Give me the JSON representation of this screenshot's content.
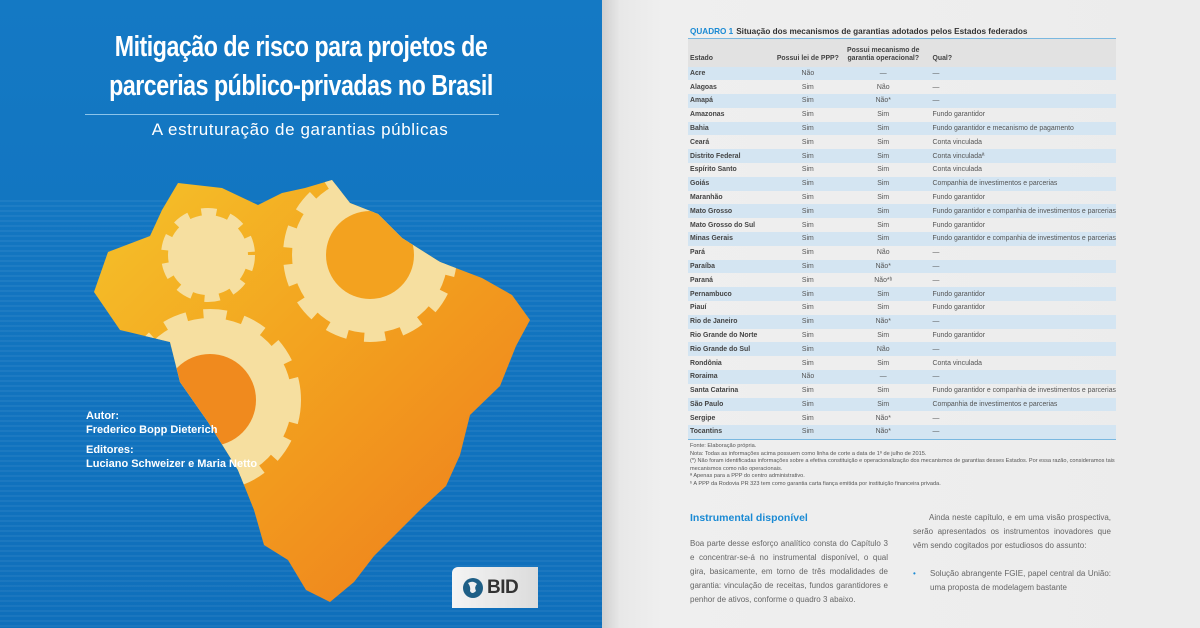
{
  "cover": {
    "title_line1": "Mitigação de risco para projetos de",
    "title_line2": "parcerias público-privadas no Brasil",
    "subtitle": "A estruturação de garantias públicas",
    "author_label": "Autor:",
    "author": "Frederico Bopp Dieterich",
    "editors_label": "Editores:",
    "editors": "Luciano Schweizer e Maria Netto",
    "logo_text": "BID",
    "colors": {
      "background": "#1479c4",
      "map_orange": "#f0851e",
      "map_yellow": "#f3b929",
      "gear": "#f6dfa0"
    }
  },
  "page": {
    "table_label": "QUADRO 1",
    "table_title": "Situação dos mecanismos de garantias adotados pelos Estados federados",
    "headers": [
      "Estado",
      "Possui lei de PPP?",
      "Possui mecanismo de garantia operacional?",
      "Qual?"
    ],
    "rows": [
      [
        "Acre",
        "Não",
        "—",
        "—"
      ],
      [
        "Alagoas",
        "Sim",
        "Não",
        "—"
      ],
      [
        "Amapá",
        "Sim",
        "Não*",
        "—"
      ],
      [
        "Amazonas",
        "Sim",
        "Sim",
        "Fundo garantidor"
      ],
      [
        "Bahia",
        "Sim",
        "Sim",
        "Fundo garantidor e mecanismo de pagamento"
      ],
      [
        "Ceará",
        "Sim",
        "Sim",
        "Conta vinculada"
      ],
      [
        "Distrito Federal",
        "Sim",
        "Sim",
        "Conta vinculadaª"
      ],
      [
        "Espírito Santo",
        "Sim",
        "Sim",
        "Conta vinculada"
      ],
      [
        "Goiás",
        "Sim",
        "Sim",
        "Companhia de investimentos e parcerias"
      ],
      [
        "Maranhão",
        "Sim",
        "Sim",
        "Fundo garantidor"
      ],
      [
        "Mato Grosso",
        "Sim",
        "Sim",
        "Fundo garantidor e companhia de investimentos e parcerias"
      ],
      [
        "Mato Grosso do Sul",
        "Sim",
        "Sim",
        "Fundo garantidor"
      ],
      [
        "Minas Gerais",
        "Sim",
        "Sim",
        "Fundo garantidor e companhia de investimentos e parcerias"
      ],
      [
        "Pará",
        "Sim",
        "Não",
        "—"
      ],
      [
        "Paraíba",
        "Sim",
        "Não*",
        "—"
      ],
      [
        "Paraná",
        "Sim",
        "Não*ᵇ",
        "—"
      ],
      [
        "Pernambuco",
        "Sim",
        "Sim",
        "Fundo garantidor"
      ],
      [
        "Piauí",
        "Sim",
        "Sim",
        "Fundo garantidor"
      ],
      [
        "Rio de Janeiro",
        "Sim",
        "Não*",
        "—"
      ],
      [
        "Rio Grande do Norte",
        "Sim",
        "Sim",
        "Fundo garantidor"
      ],
      [
        "Rio Grande do Sul",
        "Sim",
        "Não",
        "—"
      ],
      [
        "Rondônia",
        "Sim",
        "Sim",
        "Conta vinculada"
      ],
      [
        "Roraima",
        "Não",
        "—",
        "—"
      ],
      [
        "Santa Catarina",
        "Sim",
        "Sim",
        "Fundo garantidor e companhia de investimentos e parcerias"
      ],
      [
        "São Paulo",
        "Sim",
        "Sim",
        "Companhia de investimentos e parcerias"
      ],
      [
        "Sergipe",
        "Sim",
        "Não*",
        "—"
      ],
      [
        "Tocantins",
        "Sim",
        "Não*",
        "—"
      ]
    ],
    "notes": [
      "Fonte: Elaboração própria.",
      "Nota: Todas as informações acima possuem como linha de corte a data de 1º de julho de 2015.",
      "(*) Não foram identificadas informações sobre a efetiva constituição e operacionalização dos mecanismos de garantias desses Estados. Por essa razão, consideramos tais mecanismos como não operacionais.",
      "ª Apenas para a PPP do centro administrativo.",
      "ᵇ A PPP da Rodovia PR 323 tem como garantia carta fiança emitida por instituição financeira privada."
    ],
    "section_heading": "Instrumental disponível",
    "left_paragraph": "Boa parte desse esforço analítico consta do Capítulo 3 e concentrar-se-á no instrumental disponível, o qual gira, basicamente, em torno de três modalidades de garantia: vinculação de receitas, fundos garantidores e penhor de ativos, conforme o quadro 3 abaixo.",
    "right_paragraph": "Ainda neste capítulo, e em uma visão prospectiva, serão apresentados os instrumentos inovadores que vêm sendo cogitados por estudiosos do assunto:",
    "bullet": "Solução abrangente FGIE, papel central da União: uma proposta de modelagem bastante"
  }
}
